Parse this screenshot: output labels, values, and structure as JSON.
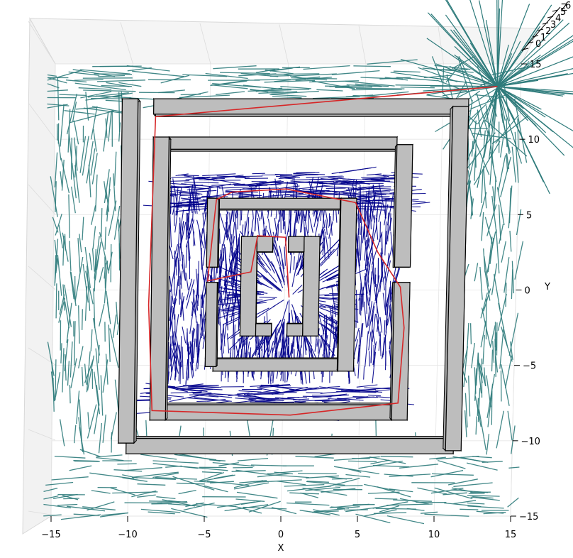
{
  "chart_data": {
    "type": "3d-path-planning",
    "title": "",
    "xlabel": "X",
    "ylabel": "Y",
    "zlabel": "Z",
    "x_ticks": [
      "−15",
      "−10",
      "−5",
      "0",
      "5",
      "10",
      "15"
    ],
    "y_ticks": [
      "15",
      "10",
      "5",
      "0",
      "−5",
      "−10",
      "−15"
    ],
    "z_ticks": [
      "0",
      "1",
      "2",
      "3",
      "4",
      "5",
      "6"
    ],
    "xlim": [
      -15,
      15
    ],
    "ylim": [
      -15,
      15
    ],
    "zlim": [
      0,
      6
    ],
    "grid": true,
    "colors": {
      "outer_tree": "#2e7b7b",
      "inner_tree": "#00008b",
      "path": "#d62728",
      "obstacle_fill": "#bdbdbd",
      "obstacle_edge": "#000000"
    },
    "series": [
      {
        "kind": "path",
        "points": [
          [
            0.3,
            -0.5
          ],
          [
            0,
            3.5
          ],
          [
            -1.8,
            3.6
          ],
          [
            -2.2,
            1.2
          ],
          [
            -5,
            0.6
          ],
          [
            -4.5,
            6
          ],
          [
            -3.5,
            6.5
          ],
          [
            0,
            6.7
          ],
          [
            4.5,
            5.8
          ],
          [
            6,
            2.5
          ],
          [
            7.5,
            0.2
          ],
          [
            7.8,
            -2.5
          ],
          [
            7.5,
            -7.5
          ],
          [
            0.5,
            -8.3
          ],
          [
            -8.5,
            -8.0
          ],
          [
            -8.8,
            -1
          ],
          [
            -8.5,
            11.5
          ],
          [
            13.5,
            13.5
          ]
        ]
      }
    ],
    "obstacles": [
      {
        "name": "outer-top",
        "x": [
          -8.5,
          11.5
        ],
        "y": [
          11.5,
          12.5
        ]
      },
      {
        "name": "outer-bottom",
        "x": [
          -10,
          11
        ],
        "y": [
          -9.7,
          -10.7
        ]
      },
      {
        "name": "outer-left",
        "x": [
          -10.5,
          -9.5
        ],
        "y": [
          -10,
          12.5
        ]
      },
      {
        "name": "outer-right",
        "x": [
          10.5,
          11.5
        ],
        "y": [
          -10.5,
          12
        ]
      },
      {
        "name": "mid-top",
        "x": [
          -7.5,
          7
        ],
        "y": [
          9.2,
          10
        ]
      },
      {
        "name": "mid-bottom",
        "x": [
          -7.5,
          7
        ],
        "y": [
          -7.5,
          -8.5
        ]
      },
      {
        "name": "mid-left",
        "x": [
          -8.5,
          -7.5
        ],
        "y": [
          -8.5,
          10
        ]
      },
      {
        "name": "mid-right-upper",
        "x": [
          7,
          8
        ],
        "y": [
          1.5,
          9.5
        ]
      },
      {
        "name": "mid-right-lower",
        "x": [
          7,
          8
        ],
        "y": [
          -8.5,
          0.5
        ]
      },
      {
        "name": "inner-top",
        "x": [
          -5,
          4.5
        ],
        "y": [
          5.3,
          6
        ]
      },
      {
        "name": "inner-bottom",
        "x": [
          -4.5,
          3.5
        ],
        "y": [
          -4.5,
          -5.3
        ]
      },
      {
        "name": "inner-left-upper",
        "x": [
          -5,
          -4.3
        ],
        "y": [
          1.5,
          6
        ]
      },
      {
        "name": "inner-left-lower",
        "x": [
          -5,
          -4.3
        ],
        "y": [
          -5,
          0.5
        ]
      },
      {
        "name": "inner-right",
        "x": [
          3.5,
          4.5
        ],
        "y": [
          -5.3,
          6
        ]
      },
      {
        "name": "core-left-bar",
        "x": [
          -2.8,
          -1.8
        ],
        "y": [
          -3,
          3.5
        ]
      },
      {
        "name": "core-right-bar",
        "x": [
          1.2,
          2.2
        ],
        "y": [
          -3,
          3.5
        ]
      },
      {
        "name": "core-left-top-stub",
        "x": [
          -1.8,
          -0.8
        ],
        "y": [
          2.5,
          3.5
        ]
      },
      {
        "name": "core-left-bottom-stub",
        "x": [
          -1.8,
          -0.8
        ],
        "y": [
          -2.2,
          -3
        ]
      },
      {
        "name": "core-right-top-stub",
        "x": [
          0.2,
          1.2
        ],
        "y": [
          2.5,
          3.5
        ]
      },
      {
        "name": "core-right-bottom-stub",
        "x": [
          0.2,
          1.2
        ],
        "y": [
          -2.2,
          -3
        ]
      }
    ]
  }
}
